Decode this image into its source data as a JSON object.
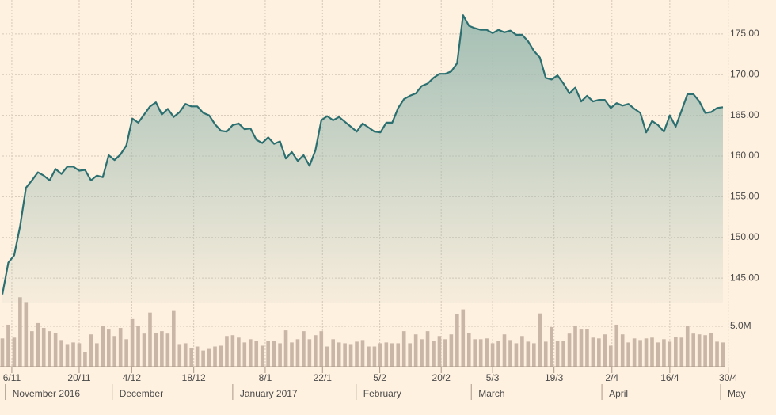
{
  "chart_data": {
    "type": "line",
    "color": "#2b6f70",
    "fill": "#9fbcb2",
    "grid": true,
    "xlim": [
      0,
      122
    ],
    "xticks": [
      {
        "value": 1.6,
        "label": "6/11"
      },
      {
        "value": 13.0,
        "label": "20/11"
      },
      {
        "value": 21.9,
        "label": "4/12"
      },
      {
        "value": 32.4,
        "label": "18/12"
      },
      {
        "value": 44.5,
        "label": "8/1"
      },
      {
        "value": 54.2,
        "label": "22/1"
      },
      {
        "value": 63.9,
        "label": "5/2"
      },
      {
        "value": 74.3,
        "label": "20/2"
      },
      {
        "value": 83.0,
        "label": "5/3"
      },
      {
        "value": 93.4,
        "label": "19/3"
      },
      {
        "value": 103.2,
        "label": "2/4"
      },
      {
        "value": 113.0,
        "label": "16/4"
      },
      {
        "value": 122.9,
        "label": "30/4"
      }
    ],
    "month_labels": [
      {
        "value": 0.9,
        "label": "November 2016"
      },
      {
        "value": 19.0,
        "label": "December"
      },
      {
        "value": 39.4,
        "label": "January 2017"
      },
      {
        "value": 60.3,
        "label": "February"
      },
      {
        "value": 79.8,
        "label": "March"
      },
      {
        "value": 101.9,
        "label": "April"
      },
      {
        "value": 122.0,
        "label": "May"
      }
    ],
    "ylim": [
      142,
      178
    ],
    "yticks": [
      {
        "value": 145,
        "label": "145.00"
      },
      {
        "value": 150,
        "label": "150.00"
      },
      {
        "value": 155,
        "label": "155.00"
      },
      {
        "value": 160,
        "label": "160.00"
      },
      {
        "value": 165,
        "label": "165.00"
      },
      {
        "value": 170,
        "label": "170.00"
      },
      {
        "value": 175,
        "label": "175.00"
      }
    ],
    "values": [
      143.0,
      146.9,
      147.8,
      151.4,
      156.1,
      157.0,
      158.0,
      157.6,
      157.0,
      158.4,
      157.8,
      158.7,
      158.7,
      158.2,
      158.3,
      157.0,
      157.6,
      157.4,
      160.1,
      159.5,
      160.2,
      161.3,
      164.6,
      164.1,
      165.1,
      166.1,
      166.6,
      165.1,
      165.8,
      164.8,
      165.4,
      166.4,
      166.1,
      166.1,
      165.3,
      165.0,
      163.9,
      163.1,
      163.0,
      163.8,
      164.0,
      163.3,
      163.4,
      162.0,
      161.6,
      162.3,
      161.5,
      161.8,
      159.7,
      160.5,
      159.4,
      160.1,
      158.8,
      160.7,
      164.4,
      164.9,
      164.4,
      164.8,
      164.2,
      163.6,
      163.0,
      164.0,
      163.5,
      163.0,
      162.9,
      164.1,
      164.1,
      165.9,
      167.0,
      167.4,
      167.7,
      168.6,
      168.9,
      169.6,
      170.1,
      170.1,
      170.4,
      171.4,
      177.3,
      176.0,
      175.7,
      175.5,
      175.5,
      175.1,
      175.5,
      175.2,
      175.4,
      174.9,
      174.9,
      174.1,
      172.9,
      172.1,
      169.6,
      169.4,
      169.9,
      168.9,
      167.7,
      168.4,
      166.7,
      167.4,
      166.7,
      166.9,
      166.9,
      165.9,
      166.5,
      166.2,
      166.4,
      165.8,
      165.3,
      162.9,
      164.3,
      163.8,
      163.0,
      165.0,
      163.6,
      165.6,
      167.6,
      167.6,
      166.7,
      165.3,
      165.4,
      165.9,
      166.0
    ],
    "volume": {
      "type": "bar",
      "color": "#c9b6a6",
      "ylim": [
        0,
        10
      ],
      "yticks": [
        {
          "value": 5,
          "label": "5.0M"
        }
      ],
      "values": [
        3.5,
        5.2,
        3.6,
        8.6,
        8.0,
        4.4,
        5.4,
        4.8,
        4.4,
        4.2,
        3.3,
        2.8,
        3.0,
        2.9,
        1.8,
        4.0,
        2.9,
        5.0,
        4.6,
        3.8,
        4.8,
        3.4,
        5.9,
        5.0,
        4.1,
        6.7,
        4.2,
        4.4,
        4.1,
        6.9,
        2.8,
        2.9,
        2.3,
        2.5,
        2.0,
        2.2,
        2.5,
        2.6,
        3.8,
        3.9,
        3.6,
        3.0,
        3.4,
        3.2,
        2.6,
        3.2,
        3.2,
        2.9,
        4.5,
        3.0,
        3.4,
        4.4,
        3.4,
        3.9,
        4.4,
        2.5,
        3.4,
        3.0,
        2.9,
        2.8,
        3.1,
        3.3,
        2.5,
        2.5,
        2.9,
        3.0,
        2.9,
        2.9,
        4.4,
        2.9,
        4.0,
        3.4,
        4.4,
        3.2,
        3.8,
        3.4,
        4.0,
        6.5,
        7.1,
        4.2,
        3.4,
        3.4,
        3.5,
        2.9,
        3.2,
        4.0,
        3.3,
        2.9,
        3.8,
        3.1,
        2.9,
        6.6,
        3.1,
        4.9,
        3.2,
        3.2,
        4.1,
        5.1,
        4.6,
        4.7,
        3.6,
        3.5,
        4.0,
        2.6,
        5.2,
        4.0,
        3.0,
        3.5,
        3.3,
        3.5,
        3.6,
        3.0,
        3.4,
        3.1,
        3.7,
        3.6,
        5.0,
        4.1,
        4.0,
        3.9,
        4.2,
        3.1,
        3.0
      ]
    }
  }
}
